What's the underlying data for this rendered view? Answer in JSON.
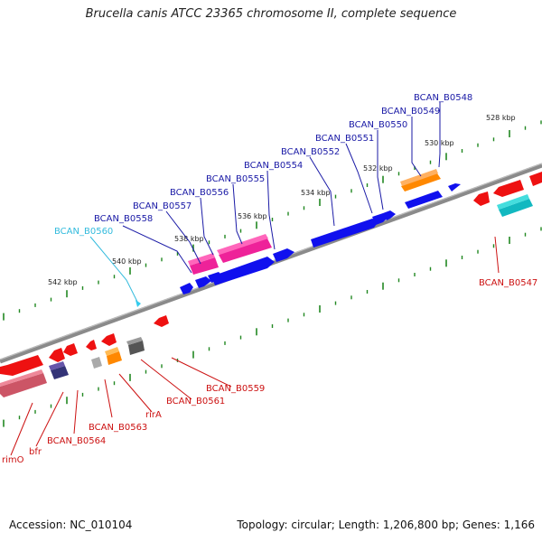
{
  "title": "Brucella canis ATCC 23365 chromosome II, complete sequence",
  "footer": {
    "accession": "Accession: NC_010104",
    "summary": "Topology: circular; Length: 1,206,800 bp; Genes: 1,166"
  },
  "colors": {
    "forward_label": "#1a1aa6",
    "highlight_label": "#33bbdd",
    "reverse_label": "#cc1111",
    "backbone": "#888888",
    "tick": "#228822"
  },
  "kbp_ticks": [
    "528 kbp",
    "530 kbp",
    "532 kbp",
    "534 kbp",
    "536 kbp",
    "538 kbp",
    "540 kbp",
    "542 kbp"
  ],
  "forward_labels": [
    "BCAN_B0548",
    "BCAN_B0549",
    "BCAN_B0550",
    "BCAN_B0551",
    "BCAN_B0552",
    "BCAN_B0554",
    "BCAN_B0555",
    "BCAN_B0556",
    "BCAN_B0557",
    "BCAN_B0558",
    "BCAN_B0560"
  ],
  "reverse_labels": [
    "BCAN_B0547",
    "BCAN_B0559",
    "BCAN_B0561",
    "rirA",
    "BCAN_B0563",
    "BCAN_B0564",
    "bfr",
    "rimO"
  ]
}
